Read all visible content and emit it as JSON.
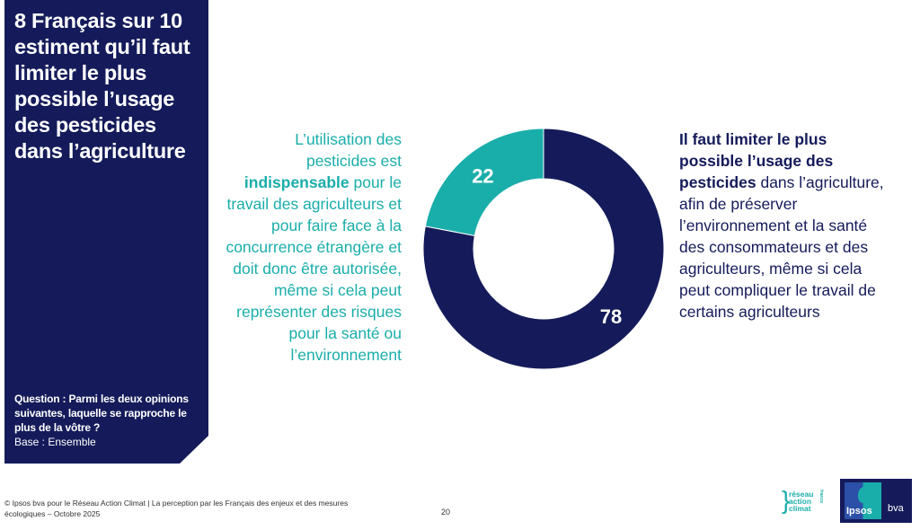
{
  "panel": {
    "title": "8 Français sur 10 estiment qu’il faut limiter le plus possible l’usage des pesticides dans l’agriculture",
    "question_label": "Question : Parmi les deux opinions suivantes, laquelle se rapproche le plus de la vôtre ?",
    "base_label": "Base : Ensemble"
  },
  "left_opinion": {
    "before": "L’utilisation des pesticides est ",
    "emphasis": "indispensable",
    "after": " pour le travail des agriculteurs et pour faire face à la concurrence étrangère et doit donc être autorisée, même si cela peut représenter des risques pour la santé ou l’environnement"
  },
  "right_opinion": {
    "emphasis": "Il faut limiter le plus possible l’usage des pesticides",
    "after": " dans l’agriculture, afin de préserver l’environnement et la santé des consommateurs et des agriculteurs, même si cela peut compliquer le travail de certains agriculteurs"
  },
  "chart_data": {
    "type": "pie",
    "variant": "donut",
    "title": "8 Français sur 10 estiment qu’il faut limiter le plus possible l’usage des pesticides dans l’agriculture",
    "categories": [
      "Il faut limiter le plus possible l’usage des pesticides",
      "L’utilisation des pesticides est indispensable"
    ],
    "values": [
      78,
      22
    ],
    "labels": [
      "78",
      "22"
    ],
    "colors": [
      "#151b5a",
      "#1aaeaa"
    ],
    "start": "top",
    "direction": "clockwise",
    "legend": "none"
  },
  "footer": {
    "copyright": "© Ipsos bva pour le Réseau Action Climat | La perception par les Français des enjeux et des mesures écologiques – Octobre 2025",
    "page_number": "20"
  },
  "logos": {
    "rac_lines": [
      "réseau",
      "action",
      "climat"
    ],
    "rac_vertical": "france",
    "ipsos": "Ipsos",
    "bva": "bva"
  },
  "colors": {
    "navy": "#151b5a",
    "teal": "#1aaeaa"
  }
}
